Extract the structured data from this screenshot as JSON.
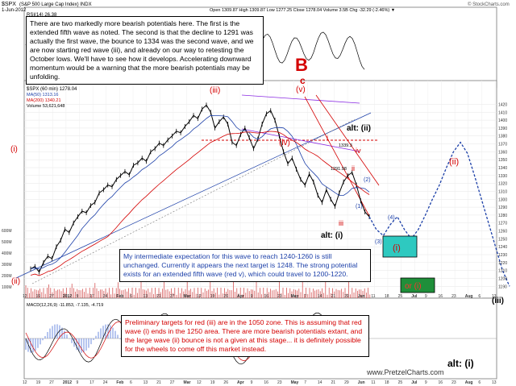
{
  "header": {
    "symbol": "$SPX",
    "name": "(S&P 500 Large Cap Index) INDX",
    "date": "1-Jun-2012",
    "ohlc": "Open 1309.87  High 1309.87  Low 1277.25  Close 1278.04  Volume 3.5B  Chg -32.29 (-2.46%) ▼",
    "stockcharts": "© StockCharts.com",
    "rsi_label": "RSI(14) 26.38"
  },
  "legend": {
    "main": "$SPX (60 min) 1278.04",
    "ma50": "MA(50) 1313.16",
    "ma200": "MA(200) 1340.21",
    "volume": "Volume 53,621,648"
  },
  "lower": {
    "macd_label": "MACD(12,26,9) -11.853, -7.135, -4.719"
  },
  "notes": {
    "top": "There are two markedly more bearish potentials here.  The first is the extended fifth wave as noted.  The second is that the decline to 1291 was actually the first wave, the bounce to 1334 was the second wave, and we are now starting red wave (iii), and already on our way to retesting the October lows.  We'll have to see how it develops.  Accelerating downward momentum would be a warning that the more bearish potentials may be unfolding.",
    "mid": "My intermediate expectation for this wave to reach 1240-1260 is still unchanged.  Currently it appears the next target is 1248.  The strong potential exists for an extended fifth wave (red v), which could travel to 1200-1220.",
    "bottom": "Preliminary targets for red (iii) are in the 1050 zone.  This is assuming that red wave (i) ends in the 1250 area.  There are more bearish potentials extant, and the large wave (ii) bounce is not a given at this stage... it is definitely possible for the wheels to come off this market instead."
  },
  "labels": {
    "big_b": "B",
    "c": "c",
    "v": "(v)",
    "iii": "(iii)",
    "iv": "(iv)",
    "i_left": "(i)",
    "ii_left": "(ii)",
    "alt_ii": "alt: (ii)",
    "alt_i": "alt: (i)",
    "red_i": "i",
    "red_ii": "ii",
    "red_iii": "iii",
    "red_iv": "iv",
    "blue_1": "(1)",
    "blue_2": "(2)",
    "blue_3": "(3)",
    "blue_4": "(4)",
    "green_i": "(i)",
    "or_i": "or (i)",
    "big_ii": "(ii)",
    "big_iii": "(iii)",
    "alt_i_lower": "alt: (i)",
    "price_1291": "1291.98",
    "price_1339": "1339.3",
    "watermark": "www.PretzelCharts.com"
  },
  "chart_data": {
    "type": "line",
    "title": "$SPX (S&P 500 Large Cap Index) INDX",
    "ylabel": "",
    "xlabel": "",
    "ylim": [
      1175,
      1450
    ],
    "y_ticks": [
      1420,
      1410,
      1400,
      1390,
      1380,
      1370,
      1360,
      1350,
      1340,
      1330,
      1320,
      1310,
      1300,
      1290,
      1280,
      1270,
      1260,
      1250,
      1240,
      1230,
      1220,
      1210,
      1200,
      1190
    ],
    "x_tick_labels": [
      "12",
      "19",
      "27",
      "2012",
      "9",
      "17",
      "24",
      "Feb",
      "6",
      "13",
      "21",
      "27",
      "Mar",
      "12",
      "19",
      "26",
      "Apr",
      "9",
      "16",
      "23",
      "May",
      "7",
      "14",
      "21",
      "29",
      "Jun",
      "11",
      "18",
      "25",
      "Jul",
      "9",
      "16",
      "23",
      "Aug",
      "6",
      "13"
    ],
    "volume_ticks": [
      "600M",
      "500M",
      "400M",
      "300M",
      "200M",
      "100M"
    ],
    "series": [
      {
        "values": [
          1212,
          1215,
          1208,
          1220,
          1228,
          1225,
          1240,
          1248,
          1262,
          1258,
          1270,
          1278,
          1285,
          1283,
          1292,
          1296,
          1308,
          1312,
          1318,
          1316,
          1325,
          1330,
          1335,
          1331,
          1343,
          1346,
          1352,
          1348,
          1360,
          1364,
          1371,
          1368,
          1375,
          1380,
          1386,
          1384,
          1392,
          1398,
          1406,
          1402,
          1414,
          1419,
          1410,
          1390,
          1398,
          1404,
          1395,
          1372,
          1368,
          1382,
          1390,
          1378,
          1364,
          1376,
          1395,
          1408,
          1412,
          1400,
          1380,
          1360,
          1345,
          1352,
          1338,
          1325,
          1318,
          1332,
          1322,
          1305,
          1296,
          1312,
          1300,
          1291,
          1308,
          1322,
          1330,
          1334,
          1318,
          1298,
          1284,
          1278
        ]
      }
    ],
    "projection": {
      "values": [
        1278,
        1262,
        1254,
        1268,
        1278,
        1262,
        1250,
        1262,
        1280,
        1300,
        1318,
        1340,
        1360,
        1372,
        1358,
        1330,
        1300,
        1270,
        1240,
        1210,
        1190
      ]
    },
    "annotations": [
      "B",
      "c",
      "(v)",
      "(iii)",
      "(iv)",
      "(i)",
      "(ii)",
      "alt: (ii)",
      "alt: (i)",
      "i",
      "ii",
      "iii",
      "iv",
      "(1)",
      "(2)",
      "(3)",
      "(4)",
      "or (i)"
    ]
  }
}
